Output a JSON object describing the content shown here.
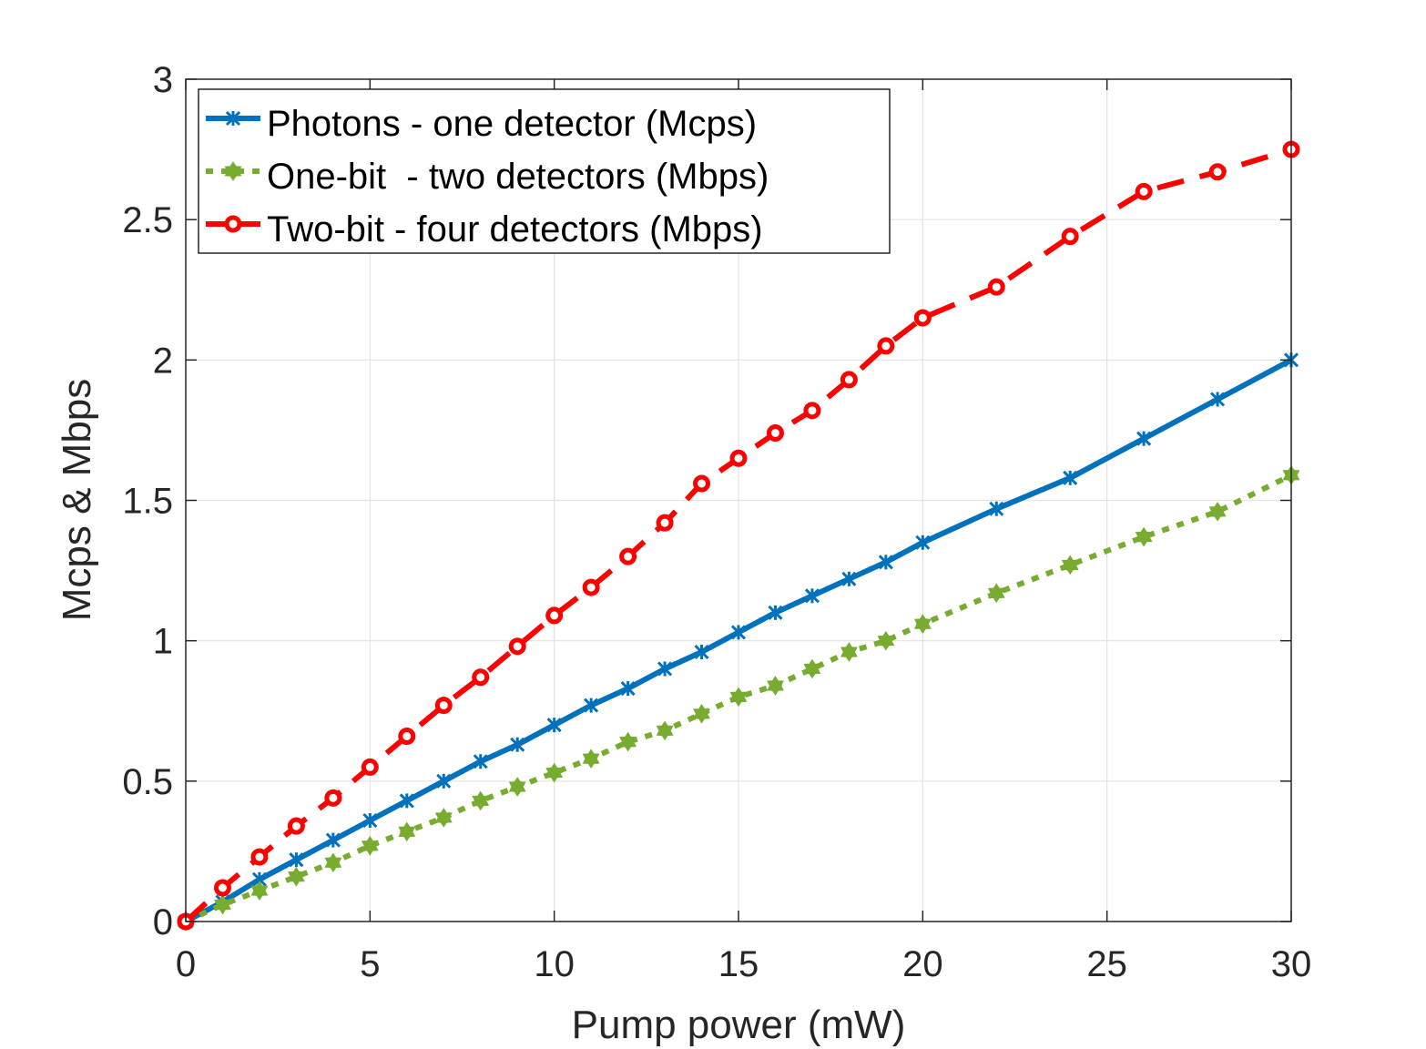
{
  "chart_data": {
    "type": "line",
    "title": "",
    "xlabel": "Pump power (mW)",
    "ylabel": "Mcps & Mbps",
    "xlim": [
      0,
      30
    ],
    "ylim": [
      0,
      3
    ],
    "xticks": [
      0,
      5,
      10,
      15,
      20,
      25,
      30
    ],
    "yticks": [
      0,
      0.5,
      1,
      1.5,
      2,
      2.5,
      3
    ],
    "xtick_labels": [
      "0",
      "5",
      "10",
      "15",
      "20",
      "25",
      "30"
    ],
    "ytick_labels": [
      "0",
      "0.5",
      "1",
      "1.5",
      "2",
      "2.5",
      "3"
    ],
    "grid": true,
    "legend_position": "top-left",
    "series": [
      {
        "name": "Photons - one detector (Mcps)",
        "color": "#0072BD",
        "line_style": "solid",
        "marker": "x-star",
        "x": [
          0,
          1,
          2,
          3,
          4,
          5,
          6,
          7,
          8,
          9,
          10,
          11,
          12,
          13,
          14,
          15,
          16,
          17,
          18,
          19,
          20,
          22,
          24,
          26,
          28,
          30
        ],
        "values": [
          0,
          0.07,
          0.15,
          0.22,
          0.29,
          0.36,
          0.43,
          0.5,
          0.57,
          0.63,
          0.7,
          0.77,
          0.83,
          0.9,
          0.96,
          1.03,
          1.1,
          1.16,
          1.22,
          1.28,
          1.35,
          1.47,
          1.58,
          1.72,
          1.86,
          2.0
        ]
      },
      {
        "name": "One-bit  - two detectors (Mbps)",
        "color": "#77AC30",
        "line_style": "dotted",
        "marker": "hexagram",
        "x": [
          0,
          1,
          2,
          3,
          4,
          5,
          6,
          7,
          8,
          9,
          10,
          11,
          12,
          13,
          14,
          15,
          16,
          17,
          18,
          19,
          20,
          22,
          24,
          26,
          28,
          30
        ],
        "values": [
          0,
          0.06,
          0.11,
          0.16,
          0.21,
          0.27,
          0.32,
          0.37,
          0.43,
          0.48,
          0.53,
          0.58,
          0.64,
          0.68,
          0.74,
          0.8,
          0.84,
          0.9,
          0.96,
          1.0,
          1.06,
          1.17,
          1.27,
          1.37,
          1.46,
          1.59
        ]
      },
      {
        "name": "Two-bit - four detectors (Mbps)",
        "color": "#FF0000",
        "line_style": "dashed",
        "marker": "circle",
        "x": [
          0,
          1,
          2,
          3,
          4,
          5,
          6,
          7,
          8,
          9,
          10,
          11,
          12,
          13,
          14,
          15,
          16,
          17,
          18,
          19,
          20,
          22,
          24,
          26,
          28,
          30
        ],
        "values": [
          0,
          0.12,
          0.23,
          0.34,
          0.44,
          0.55,
          0.66,
          0.77,
          0.87,
          0.98,
          1.09,
          1.19,
          1.3,
          1.42,
          1.56,
          1.65,
          1.74,
          1.82,
          1.93,
          2.05,
          2.15,
          2.26,
          2.44,
          2.6,
          2.67,
          2.75
        ]
      }
    ]
  }
}
